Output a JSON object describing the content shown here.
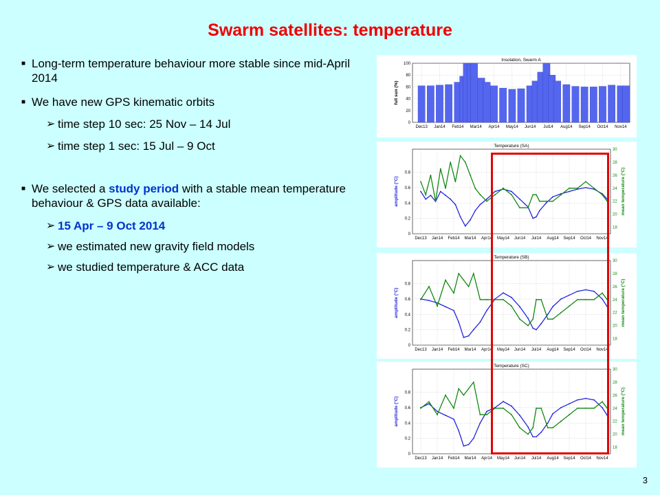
{
  "title": "Swarm satellites: temperature",
  "bullets": [
    {
      "level": 1,
      "text": "Long-term temperature behaviour more stable since mid-April 2014"
    },
    {
      "level": 1,
      "text": "We have new GPS kinematic orbits"
    },
    {
      "level": 2,
      "text": "time step 10 sec: 25 Nov – 14 Jul"
    },
    {
      "level": 2,
      "text": "time step 1 sec: 15 Jul – 9 Oct"
    },
    {
      "level": 1,
      "pre": "We selected a ",
      "hl": "study period",
      "post": " with a stable mean temperature behaviour & GPS data available:"
    },
    {
      "level": 2,
      "text": "15 Apr – 9 Oct 2014",
      "blue": true
    },
    {
      "level": 2,
      "text": "we estimated new gravity field models"
    },
    {
      "level": 2,
      "text": "we studied temperature & ACC data"
    }
  ],
  "page_number": "3",
  "colors": {
    "title": "#ee0000",
    "background": "#ccffff",
    "highlight": "#0033cc",
    "amplitude": "#2222dd",
    "mean_temp": "#118811",
    "box": "#e00000"
  },
  "chart_data": [
    {
      "type": "bar",
      "title": "Insolation, Swarm A",
      "ylabel": "full sun (%)",
      "x_ticks": [
        "Dec13",
        "Jan14",
        "Feb14",
        "Mar14",
        "Apr14",
        "May14",
        "Jun14",
        "Jul14",
        "Aug14",
        "Sep14",
        "Oct14",
        "Nov14"
      ],
      "y_ticks": [
        "0",
        "20",
        "40",
        "60",
        "80",
        "100"
      ],
      "ylim": [
        0,
        100
      ],
      "x": [
        0,
        0.5,
        1,
        1.5,
        2,
        2.3,
        2.5,
        2.7,
        2.9,
        3.3,
        3.6,
        4,
        4.5,
        5,
        5.5,
        6,
        6.3,
        6.6,
        6.9,
        7.2,
        7.5,
        8,
        8.5,
        9,
        9.5,
        10,
        10.5,
        11,
        11.3
      ],
      "values": [
        62,
        62,
        63,
        64,
        68,
        78,
        100,
        100,
        100,
        75,
        68,
        62,
        58,
        56,
        57,
        62,
        70,
        85,
        100,
        80,
        70,
        64,
        61,
        60,
        60,
        61,
        63,
        62,
        62
      ],
      "grid": true
    },
    {
      "type": "line",
      "title": "Temperature (SA)",
      "ylabel": "amplitude (°C)",
      "y2label": "mean temperature (°C)",
      "x_ticks": [
        "Dec13",
        "Jan14",
        "Feb14",
        "Mar14",
        "Apr14",
        "May14",
        "Jun14",
        "Jul14",
        "Aug14",
        "Sep14",
        "Oct14",
        "Nov14"
      ],
      "y_ticks": [
        "0",
        "0.2",
        "0.4",
        "0.6",
        "0.8"
      ],
      "y2_ticks": [
        "18",
        "20",
        "22",
        "24",
        "26",
        "28",
        "30"
      ],
      "ylim": [
        0,
        1.1
      ],
      "y2lim": [
        17,
        30
      ],
      "grid": true,
      "series": [
        {
          "axis": "left",
          "x": [
            0,
            0.3,
            0.6,
            0.9,
            1.2,
            1.5,
            1.8,
            2.1,
            2.4,
            2.7,
            3,
            3.3,
            3.6,
            4,
            4.5,
            5,
            5.5,
            6,
            6.5,
            6.8,
            7,
            7.2,
            7.6,
            8,
            8.5,
            9,
            9.5,
            10,
            10.5,
            11,
            11.3
          ],
          "values": [
            0.55,
            0.45,
            0.5,
            0.42,
            0.55,
            0.5,
            0.45,
            0.38,
            0.22,
            0.1,
            0.18,
            0.3,
            0.38,
            0.45,
            0.55,
            0.58,
            0.55,
            0.45,
            0.35,
            0.2,
            0.22,
            0.3,
            0.4,
            0.48,
            0.52,
            0.55,
            0.58,
            0.6,
            0.58,
            0.52,
            0.45
          ]
        },
        {
          "axis": "right",
          "x": [
            0,
            0.3,
            0.6,
            0.9,
            1.2,
            1.5,
            1.8,
            2.1,
            2.4,
            2.7,
            3,
            3.3,
            3.6,
            4,
            4.5,
            5,
            5.5,
            6,
            6.5,
            6.8,
            7,
            7.2,
            7.6,
            8,
            8.5,
            9,
            9.5,
            10,
            10.5,
            11,
            11.3
          ],
          "values": [
            25,
            23,
            26,
            22,
            27,
            24,
            28,
            25,
            29,
            28,
            26,
            24,
            23,
            22,
            23,
            24,
            23,
            21,
            21,
            23,
            23,
            22,
            22,
            22,
            23,
            24,
            24,
            25,
            24,
            23,
            22
          ]
        }
      ]
    },
    {
      "type": "line",
      "title": "Temperature (SB)",
      "ylabel": "amplitude (°C)",
      "y2label": "mean temperature (°C)",
      "x_ticks": [
        "Dec13",
        "Jan14",
        "Feb14",
        "Mar14",
        "Apr14",
        "May14",
        "Jun14",
        "Jul14",
        "Aug14",
        "Sep14",
        "Oct14",
        "Nov14"
      ],
      "y_ticks": [
        "0",
        "0.2",
        "0.4",
        "0.6",
        "0.8"
      ],
      "y2_ticks": [
        "18",
        "20",
        "22",
        "24",
        "26",
        "28",
        "30"
      ],
      "ylim": [
        0,
        1.1
      ],
      "y2lim": [
        17,
        30
      ],
      "grid": true,
      "series": [
        {
          "axis": "left",
          "x": [
            0,
            0.5,
            1,
            1.5,
            2,
            2.3,
            2.6,
            2.9,
            3.2,
            3.6,
            4,
            4.5,
            5,
            5.5,
            6,
            6.5,
            6.8,
            7,
            7.3,
            7.7,
            8,
            8.5,
            9,
            9.5,
            10,
            10.5,
            11,
            11.3
          ],
          "values": [
            0.6,
            0.58,
            0.55,
            0.5,
            0.45,
            0.3,
            0.1,
            0.12,
            0.2,
            0.3,
            0.45,
            0.6,
            0.68,
            0.62,
            0.5,
            0.35,
            0.22,
            0.2,
            0.28,
            0.4,
            0.5,
            0.6,
            0.65,
            0.7,
            0.72,
            0.7,
            0.6,
            0.5
          ]
        },
        {
          "axis": "right",
          "x": [
            0,
            0.5,
            1,
            1.5,
            2,
            2.3,
            2.6,
            2.9,
            3.2,
            3.6,
            4,
            4.5,
            5,
            5.5,
            6,
            6.5,
            6.8,
            7,
            7.3,
            7.7,
            8,
            8.5,
            9,
            9.5,
            10,
            10.5,
            11,
            11.3
          ],
          "values": [
            24,
            26,
            23,
            27,
            25,
            28,
            27,
            26,
            28,
            24,
            24,
            24,
            24,
            23,
            21,
            20,
            21,
            24,
            24,
            21,
            21,
            22,
            23,
            24,
            24,
            24,
            25,
            24
          ]
        }
      ]
    },
    {
      "type": "line",
      "title": "Temperature (SC)",
      "ylabel": "amplitude (°C)",
      "y2label": "mean temperature (°C)",
      "x_ticks": [
        "Dec13",
        "Jan14",
        "Feb14",
        "Mar14",
        "Apr14",
        "May14",
        "Jun14",
        "Jul14",
        "Aug14",
        "Sep14",
        "Oct14",
        "Nov14"
      ],
      "y_ticks": [
        "0",
        "0.2",
        "0.4",
        "0.6",
        "0.8"
      ],
      "y2_ticks": [
        "18",
        "20",
        "22",
        "24",
        "26",
        "28",
        "30"
      ],
      "ylim": [
        0,
        1.1
      ],
      "y2lim": [
        17,
        30
      ],
      "grid": true,
      "series": [
        {
          "axis": "left",
          "x": [
            0,
            0.5,
            1,
            1.5,
            2,
            2.3,
            2.6,
            2.9,
            3.2,
            3.6,
            4,
            4.5,
            5,
            5.5,
            6,
            6.5,
            6.8,
            7,
            7.3,
            7.7,
            8,
            8.5,
            9,
            9.5,
            10,
            10.5,
            11,
            11.3
          ],
          "values": [
            0.6,
            0.65,
            0.55,
            0.5,
            0.45,
            0.3,
            0.1,
            0.12,
            0.2,
            0.4,
            0.55,
            0.6,
            0.68,
            0.62,
            0.5,
            0.35,
            0.22,
            0.22,
            0.28,
            0.4,
            0.52,
            0.6,
            0.65,
            0.7,
            0.72,
            0.7,
            0.6,
            0.5
          ]
        },
        {
          "axis": "right",
          "x": [
            0,
            0.5,
            1,
            1.5,
            2,
            2.3,
            2.6,
            2.9,
            3.2,
            3.6,
            4,
            4.5,
            5,
            5.5,
            6,
            6.5,
            6.8,
            7,
            7.3,
            7.7,
            8,
            8.5,
            9,
            9.5,
            10,
            10.5,
            11,
            11.3
          ],
          "values": [
            24,
            25,
            23,
            26,
            24,
            27,
            26,
            27,
            28,
            23,
            23,
            24,
            24,
            23,
            21,
            20,
            21,
            24,
            24,
            21,
            21,
            22,
            23,
            24,
            24,
            24,
            25,
            24
          ]
        }
      ]
    }
  ]
}
